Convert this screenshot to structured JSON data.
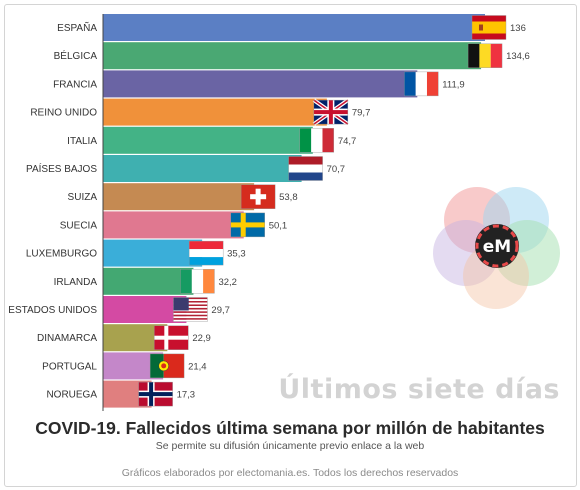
{
  "chart_data": {
    "type": "bar",
    "orientation": "horizontal",
    "categories": [
      "ESPAÑA",
      "BÉLGICA",
      "FRANCIA",
      "REINO UNIDO",
      "ITALIA",
      "PAÍSES BAJOS",
      "SUIZA",
      "SUECIA",
      "LUXEMBURGO",
      "IRLANDA",
      "ESTADOS UNIDOS",
      "DINAMARCA",
      "PORTUGAL",
      "NORUEGA"
    ],
    "values": [
      136,
      134.6,
      111.9,
      79.7,
      74.7,
      70.7,
      53.8,
      50.1,
      35.3,
      32.2,
      29.7,
      22.9,
      21.4,
      17.3
    ],
    "value_labels": [
      "136",
      "134,6",
      "111,9",
      "79,7",
      "74,7",
      "70,7",
      "53,8",
      "50,1",
      "35,3",
      "32,2",
      "29,7",
      "22,9",
      "21,4",
      "17,3"
    ],
    "bar_colors": [
      "#5b7fc4",
      "#4aa873",
      "#6a64a4",
      "#f0913a",
      "#43b386",
      "#3fb0b0",
      "#c58a52",
      "#e07890",
      "#3aaed9",
      "#43a872",
      "#d44aa3",
      "#a8a24e",
      "#c487c9",
      "#e07f7f"
    ],
    "flags": [
      "spain",
      "belgium",
      "france",
      "uk",
      "italy",
      "netherlands",
      "switzerland",
      "sweden",
      "luxembourg",
      "ireland",
      "usa",
      "denmark",
      "portugal",
      "norway"
    ],
    "xlim": [
      0,
      136
    ],
    "grid": false,
    "legend": "none"
  },
  "watermark": "Últimos siete días",
  "title": "COVID-19. Fallecidos última semana por millón de habitantes",
  "subtitle": "Se permite su difusión únicamente previo enlace a la web",
  "footer": "Gráficos elaborados por electomania.es. Todos los derechos reservados",
  "logo": {
    "text": "eM",
    "icon": "electomania-logo-icon"
  }
}
